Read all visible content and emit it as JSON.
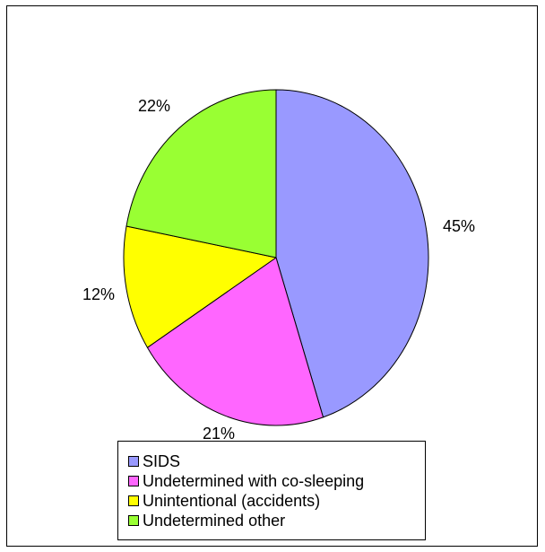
{
  "chart_data": {
    "type": "pie",
    "title": "",
    "slices": [
      {
        "label": "SIDS",
        "value": 45,
        "value_label": "45%",
        "color": "#9999ff"
      },
      {
        "label": "Undetermined with co-sleeping",
        "value": 21,
        "value_label": "21%",
        "color": "#ff66ff"
      },
      {
        "label": "Unintentional (accidents)",
        "value": 12,
        "value_label": "12%",
        "color": "#ffff00"
      },
      {
        "label": "Undetermined other",
        "value": 22,
        "value_label": "22%",
        "color": "#99ff33"
      }
    ],
    "start_angle_deg": 0,
    "direction": "clockwise",
    "legend_position": "bottom"
  }
}
